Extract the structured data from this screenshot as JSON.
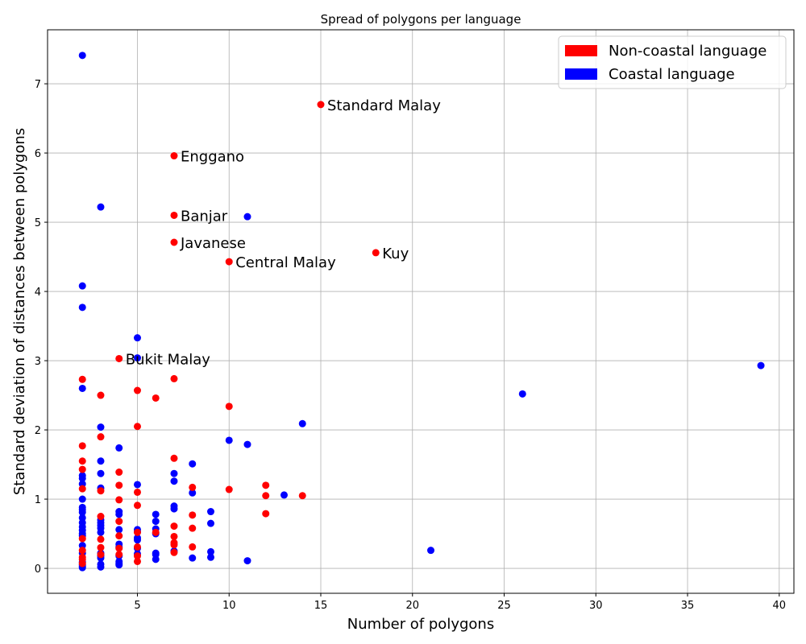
{
  "chart_data": {
    "type": "scatter",
    "title": "Spread of polygons per language",
    "xlabel": "Number of polygons",
    "ylabel": "Standard deviation of distances between polygons",
    "xlim": [
      0.1,
      40.8
    ],
    "ylim": [
      -0.36,
      7.78
    ],
    "xticks": [
      5,
      10,
      15,
      20,
      25,
      30,
      35,
      40
    ],
    "yticks": [
      0,
      1,
      2,
      3,
      4,
      5,
      6,
      7
    ],
    "grid": true,
    "legend_position": "top-right",
    "colors": {
      "non_coastal": "#ff0000",
      "coastal": "#0000ff"
    },
    "series": [
      {
        "name": "Non-coastal language",
        "color": "#ff0000",
        "points": [
          [
            15,
            6.7
          ],
          [
            7,
            5.96
          ],
          [
            7,
            5.1
          ],
          [
            7,
            4.71
          ],
          [
            10,
            4.43
          ],
          [
            18,
            4.56
          ],
          [
            4,
            3.03
          ],
          [
            2,
            2.73
          ],
          [
            7,
            2.74
          ],
          [
            5,
            2.57
          ],
          [
            3,
            2.5
          ],
          [
            6,
            2.46
          ],
          [
            10,
            2.34
          ],
          [
            5,
            2.05
          ],
          [
            3,
            1.9
          ],
          [
            2,
            1.77
          ],
          [
            7,
            1.59
          ],
          [
            2,
            1.55
          ],
          [
            2,
            1.43
          ],
          [
            4,
            1.39
          ],
          [
            2,
            1.15
          ],
          [
            3,
            1.12
          ],
          [
            4,
            1.2
          ],
          [
            5,
            1.1
          ],
          [
            8,
            1.17
          ],
          [
            10,
            1.14
          ],
          [
            12,
            1.2
          ],
          [
            12,
            1.05
          ],
          [
            14,
            1.05
          ],
          [
            4,
            0.99
          ],
          [
            5,
            0.91
          ],
          [
            3,
            0.75
          ],
          [
            4,
            0.68
          ],
          [
            8,
            0.77
          ],
          [
            12,
            0.79
          ],
          [
            6,
            0.52
          ],
          [
            5,
            0.52
          ],
          [
            7,
            0.61
          ],
          [
            8,
            0.58
          ],
          [
            7,
            0.46
          ],
          [
            4,
            0.47
          ],
          [
            3,
            0.42
          ],
          [
            2,
            0.43
          ],
          [
            7,
            0.37
          ],
          [
            7,
            0.34
          ],
          [
            8,
            0.31
          ],
          [
            3,
            0.3
          ],
          [
            4,
            0.29
          ],
          [
            5,
            0.31
          ],
          [
            2,
            0.26
          ],
          [
            7,
            0.23
          ],
          [
            4,
            0.2
          ],
          [
            3,
            0.2
          ],
          [
            5,
            0.18
          ],
          [
            2,
            0.16
          ],
          [
            2,
            0.13
          ],
          [
            5,
            0.1
          ],
          [
            2,
            0.07
          ]
        ]
      },
      {
        "name": "Coastal language",
        "color": "#0000ff",
        "points": [
          [
            2,
            7.41
          ],
          [
            3,
            5.22
          ],
          [
            11,
            5.08
          ],
          [
            2,
            4.08
          ],
          [
            2,
            3.77
          ],
          [
            5,
            3.33
          ],
          [
            5,
            3.04
          ],
          [
            39,
            2.93
          ],
          [
            2,
            2.6
          ],
          [
            26,
            2.52
          ],
          [
            14,
            2.09
          ],
          [
            3,
            2.04
          ],
          [
            10,
            1.85
          ],
          [
            11,
            1.79
          ],
          [
            4,
            1.74
          ],
          [
            3,
            1.55
          ],
          [
            8,
            1.51
          ],
          [
            3,
            1.37
          ],
          [
            7,
            1.37
          ],
          [
            2,
            1.34
          ],
          [
            2,
            1.3
          ],
          [
            7,
            1.26
          ],
          [
            2,
            1.22
          ],
          [
            5,
            1.21
          ],
          [
            3,
            1.16
          ],
          [
            8,
            1.09
          ],
          [
            13,
            1.06
          ],
          [
            2,
            1.0
          ],
          [
            2,
            0.88
          ],
          [
            2,
            0.85
          ],
          [
            2,
            0.81
          ],
          [
            4,
            0.82
          ],
          [
            4,
            0.78
          ],
          [
            7,
            0.9
          ],
          [
            7,
            0.86
          ],
          [
            9,
            0.82
          ],
          [
            6,
            0.78
          ],
          [
            2,
            0.73
          ],
          [
            3,
            0.7
          ],
          [
            3,
            0.66
          ],
          [
            2,
            0.66
          ],
          [
            6,
            0.68
          ],
          [
            9,
            0.65
          ],
          [
            3,
            0.62
          ],
          [
            2,
            0.6
          ],
          [
            3,
            0.58
          ],
          [
            6,
            0.57
          ],
          [
            4,
            0.56
          ],
          [
            2,
            0.55
          ],
          [
            5,
            0.56
          ],
          [
            5,
            0.53
          ],
          [
            3,
            0.52
          ],
          [
            2,
            0.5
          ],
          [
            6,
            0.5
          ],
          [
            2,
            0.47
          ],
          [
            5,
            0.44
          ],
          [
            5,
            0.41
          ],
          [
            4,
            0.35
          ],
          [
            2,
            0.33
          ],
          [
            4,
            0.31
          ],
          [
            5,
            0.29
          ],
          [
            21,
            0.26
          ],
          [
            7,
            0.25
          ],
          [
            9,
            0.24
          ],
          [
            2,
            0.22
          ],
          [
            3,
            0.22
          ],
          [
            6,
            0.22
          ],
          [
            6,
            0.2
          ],
          [
            5,
            0.21
          ],
          [
            4,
            0.18
          ],
          [
            3,
            0.18
          ],
          [
            3,
            0.15
          ],
          [
            8,
            0.15
          ],
          [
            9,
            0.16
          ],
          [
            6,
            0.13
          ],
          [
            11,
            0.11
          ],
          [
            4,
            0.1
          ],
          [
            2,
            0.09
          ],
          [
            4,
            0.07
          ],
          [
            3,
            0.06
          ],
          [
            2,
            0.05
          ],
          [
            4,
            0.05
          ],
          [
            2,
            0.03
          ],
          [
            3,
            0.02
          ],
          [
            2,
            0.01
          ]
        ]
      }
    ],
    "annotations": [
      {
        "text": "Standard Malay",
        "x": 15,
        "y": 6.7
      },
      {
        "text": "Enggano",
        "x": 7,
        "y": 5.96
      },
      {
        "text": "Banjar",
        "x": 7,
        "y": 5.1
      },
      {
        "text": "Javanese",
        "x": 7,
        "y": 4.71
      },
      {
        "text": "Central Malay",
        "x": 10,
        "y": 4.43
      },
      {
        "text": "Kuy",
        "x": 18,
        "y": 4.56
      },
      {
        "text": "Bukit Malay",
        "x": 4,
        "y": 3.03
      }
    ]
  }
}
